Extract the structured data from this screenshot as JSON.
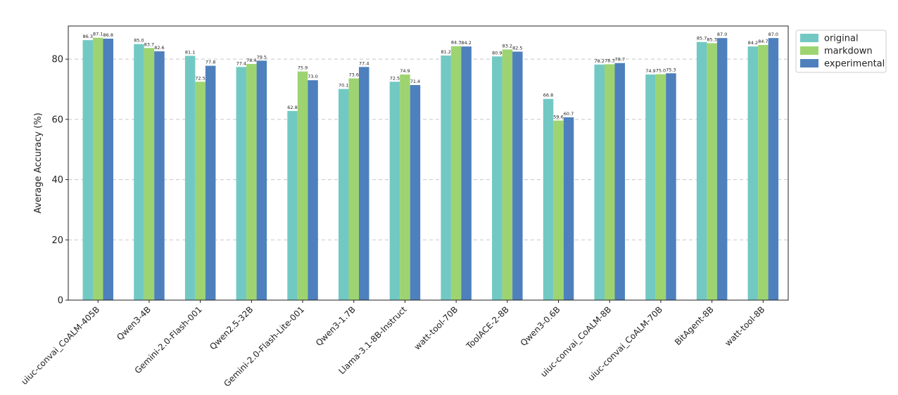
{
  "chart_data": {
    "type": "bar",
    "title": "",
    "xlabel": "",
    "ylabel": "Average Accuracy (%)",
    "ylim": [
      0,
      91
    ],
    "yticks": [
      0,
      20,
      40,
      60,
      80
    ],
    "grid": "y-dashed",
    "legend_position": "outside-top-right",
    "categories": [
      "uiuc-convai_CoALM-405B",
      "Qwen3-4B",
      "Gemini-2.0-Flash-001",
      "Qwen2.5-32B",
      "Gemini-2.0-Flash-Lite-001",
      "Qwen3-1.7B",
      "Llama-3.1-8B-Instruct",
      "watt-tool-70B",
      "ToolACE-2-8B",
      "Qwen3-0.6B",
      "uiuc-convai_CoALM-8B",
      "uiuc-convai_CoALM-70B",
      "BitAgent-8B",
      "watt-tool-8B"
    ],
    "series": [
      {
        "name": "original",
        "color": "#72c9c4",
        "values": [
          86.3,
          85.0,
          81.1,
          77.4,
          62.8,
          70.1,
          72.5,
          81.2,
          80.9,
          66.8,
          78.2,
          74.9,
          85.7,
          84.2
        ],
        "labels": [
          "86.3",
          "85.0",
          "81.1",
          "77.4",
          "62.8",
          "70.1",
          "72.5",
          "81.2",
          "80.9",
          "66.8",
          "78.2",
          "74.9",
          "85.7",
          "84.2"
        ]
      },
      {
        "name": "markdown",
        "color": "#9dd471",
        "values": [
          87.1,
          83.7,
          72.5,
          78.4,
          75.9,
          73.6,
          74.9,
          84.3,
          83.2,
          59.6,
          78.3,
          75.0,
          85.3,
          84.7
        ],
        "labels": [
          "87.1",
          "83.7",
          "72.5",
          "78.4",
          "75.9",
          "73.6",
          "74.9",
          "84.3",
          "83.2",
          "59.6",
          "78.3",
          "75.0",
          "85.3",
          "84.7"
        ]
      },
      {
        "name": "experimental",
        "color": "#4e80bd",
        "values": [
          86.8,
          82.6,
          77.8,
          79.5,
          73.0,
          77.4,
          71.4,
          84.2,
          82.5,
          60.7,
          78.7,
          75.3,
          87.0,
          87.0
        ],
        "labels": [
          "86.8",
          "82.6",
          "77.8",
          "79.5",
          "73.0",
          "77.4",
          "71.4",
          "84.2",
          "82.5",
          "60.7",
          "78.7",
          "75.3",
          "87.0",
          "87.0"
        ]
      }
    ]
  }
}
